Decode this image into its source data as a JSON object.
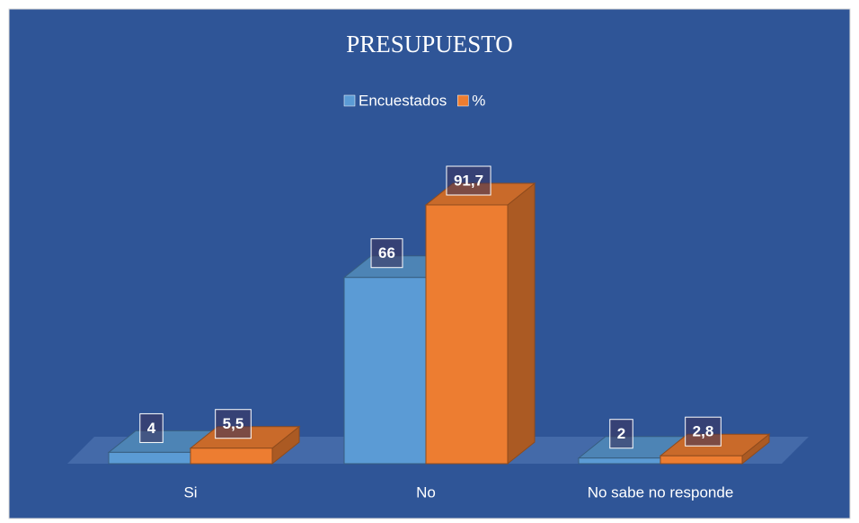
{
  "chart_data": {
    "type": "bar3d",
    "title": "PRESUPUESTO",
    "categories": [
      "Si",
      "No",
      "No sabe no responde"
    ],
    "series": [
      {
        "name": "Encuestados",
        "color": "#5b9bd5",
        "values": [
          4,
          66,
          2
        ]
      },
      {
        "name": "%",
        "color": "#ed7d31",
        "values": [
          5.5,
          91.7,
          2.8
        ],
        "value_labels": [
          "5,5",
          "91,7",
          "2,8"
        ]
      }
    ],
    "legend": "top"
  }
}
